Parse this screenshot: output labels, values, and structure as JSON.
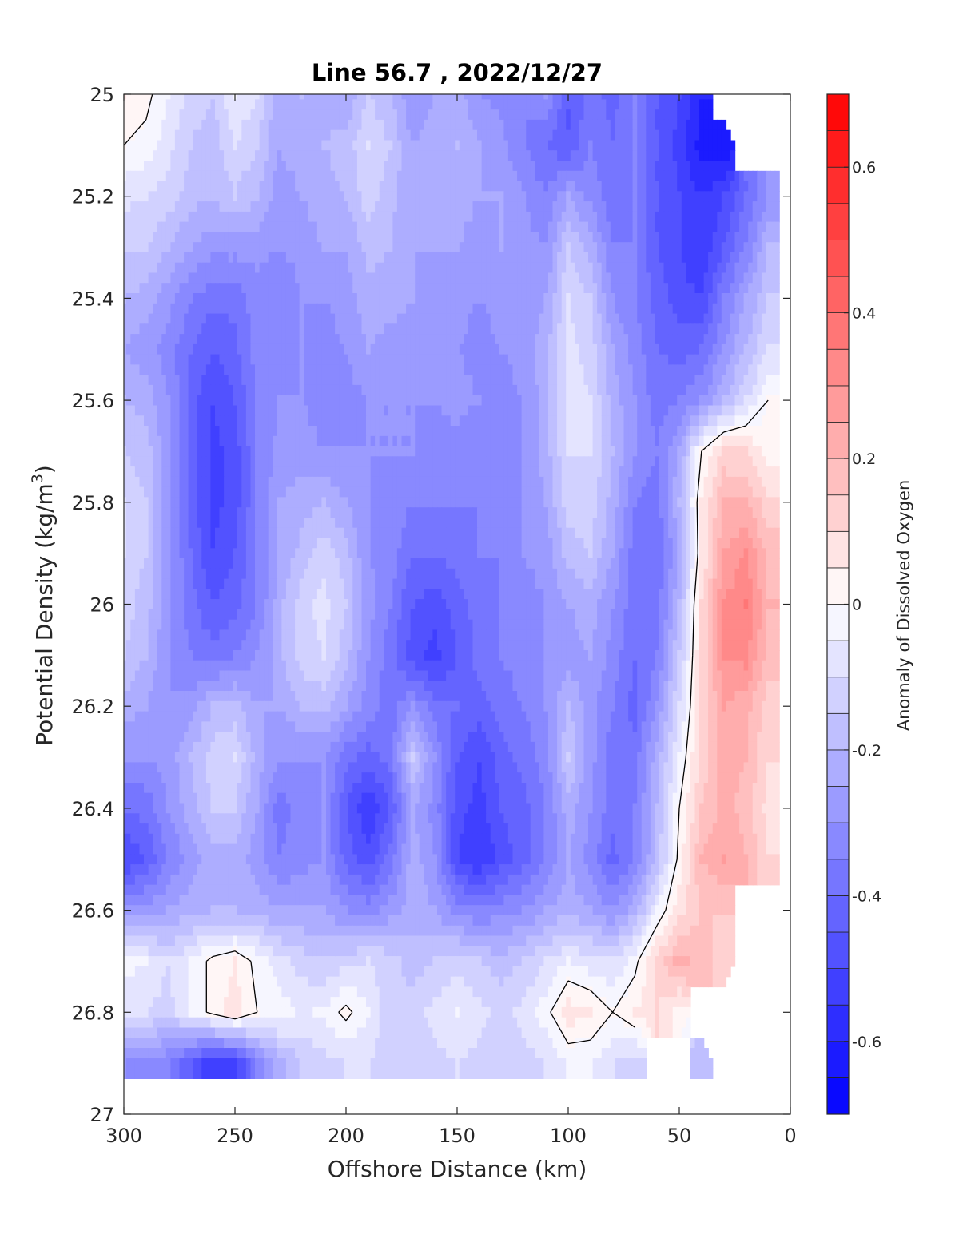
{
  "chart_data": {
    "type": "heatmap",
    "title": "Line 56.7 , 2022/12/27",
    "xlabel": "Offshore Distance (km)",
    "ylabel": "Potential Density (kg/m",
    "ylabel_superscript": "3",
    "ylabel_close": ")",
    "xlim": [
      300,
      0
    ],
    "ylim": [
      25,
      27
    ],
    "x_reversed": true,
    "y_reversed": true,
    "x_ticks": [
      300,
      250,
      200,
      150,
      100,
      50,
      0
    ],
    "x_tick_labels": [
      "300",
      "250",
      "200",
      "150",
      "100",
      "50",
      "0"
    ],
    "y_ticks": [
      25,
      25.2,
      25.4,
      25.6,
      25.8,
      26,
      26.2,
      26.4,
      26.6,
      26.8,
      27
    ],
    "y_tick_labels": [
      "25",
      "25.2",
      "25.4",
      "25.6",
      "25.8",
      "26",
      "26.2",
      "26.4",
      "26.6",
      "26.8",
      "27"
    ],
    "colorbar": {
      "label": "Anomaly of Dissolved Oxygen",
      "range": [
        -0.7,
        0.7
      ],
      "ticks": [
        0.6,
        0.4,
        0.2,
        0,
        -0.2,
        -0.4,
        -0.6
      ],
      "tick_labels": [
        "0.6",
        "0.4",
        "0.2",
        "0",
        "-0.2",
        "-0.4",
        "-0.6"
      ],
      "levels": [
        -0.7,
        -0.65,
        -0.6,
        -0.55,
        -0.5,
        -0.45,
        -0.4,
        -0.35,
        -0.3,
        -0.25,
        -0.2,
        -0.15,
        -0.1,
        -0.05,
        0,
        0.05,
        0.1,
        0.15,
        0.2,
        0.25,
        0.3,
        0.35,
        0.4,
        0.45,
        0.5,
        0.55,
        0.6,
        0.65,
        0.7
      ],
      "colormap": "blue-white-red",
      "color_negative": "#0000ff",
      "color_zero": "#ffffff",
      "color_positive": "#ff0000"
    },
    "zero_contour": true,
    "x": [
      300,
      290,
      280,
      270,
      260,
      250,
      240,
      230,
      220,
      210,
      200,
      190,
      180,
      170,
      160,
      150,
      140,
      130,
      120,
      110,
      100,
      90,
      80,
      70,
      60,
      50,
      40,
      30,
      20,
      10
    ],
    "y": [
      25.0,
      25.1,
      25.2,
      25.3,
      25.4,
      25.5,
      25.6,
      25.7,
      25.8,
      25.9,
      26.0,
      26.1,
      26.2,
      26.3,
      26.4,
      26.5,
      26.6,
      26.7,
      26.8,
      26.9
    ],
    "z": [
      [
        0.05,
        0.02,
        -0.05,
        -0.12,
        -0.15,
        -0.05,
        -0.1,
        -0.25,
        -0.2,
        -0.22,
        -0.25,
        -0.15,
        -0.2,
        -0.3,
        -0.25,
        -0.22,
        -0.3,
        -0.32,
        -0.35,
        -0.3,
        -0.45,
        -0.38,
        -0.42,
        -0.35,
        -0.45,
        -0.5,
        -0.6,
        null,
        null,
        null
      ],
      [
        0.0,
        -0.02,
        -0.08,
        -0.15,
        -0.18,
        -0.1,
        -0.15,
        -0.25,
        -0.22,
        -0.2,
        -0.18,
        -0.1,
        -0.15,
        -0.25,
        -0.22,
        -0.2,
        -0.25,
        -0.28,
        -0.35,
        -0.4,
        -0.45,
        -0.35,
        -0.4,
        -0.35,
        -0.45,
        -0.52,
        -0.62,
        -0.65,
        null,
        null
      ],
      [
        -0.08,
        -0.1,
        -0.12,
        -0.18,
        -0.2,
        -0.15,
        -0.2,
        -0.28,
        -0.25,
        -0.22,
        -0.2,
        -0.12,
        -0.18,
        -0.25,
        -0.22,
        -0.22,
        -0.25,
        -0.25,
        -0.3,
        -0.35,
        -0.25,
        -0.32,
        -0.38,
        -0.35,
        -0.45,
        -0.5,
        -0.55,
        -0.5,
        -0.4,
        -0.3
      ],
      [
        -0.15,
        -0.15,
        -0.2,
        -0.25,
        -0.28,
        -0.28,
        -0.28,
        -0.3,
        -0.28,
        -0.25,
        -0.25,
        -0.18,
        -0.2,
        -0.25,
        -0.25,
        -0.25,
        -0.28,
        -0.25,
        -0.28,
        -0.3,
        -0.15,
        -0.22,
        -0.35,
        -0.35,
        -0.45,
        -0.5,
        -0.55,
        -0.45,
        -0.35,
        -0.2
      ],
      [
        -0.2,
        -0.22,
        -0.28,
        -0.35,
        -0.38,
        -0.38,
        -0.32,
        -0.35,
        -0.3,
        -0.3,
        -0.28,
        -0.22,
        -0.22,
        -0.25,
        -0.28,
        -0.28,
        -0.3,
        -0.28,
        -0.28,
        -0.25,
        -0.1,
        -0.15,
        -0.3,
        -0.35,
        -0.42,
        -0.48,
        -0.5,
        -0.35,
        -0.25,
        -0.15
      ],
      [
        -0.25,
        -0.28,
        -0.32,
        -0.4,
        -0.45,
        -0.42,
        -0.32,
        -0.35,
        -0.3,
        -0.32,
        -0.3,
        -0.25,
        -0.28,
        -0.28,
        -0.3,
        -0.3,
        -0.32,
        -0.3,
        -0.28,
        -0.22,
        -0.08,
        -0.12,
        -0.25,
        -0.32,
        -0.4,
        -0.42,
        -0.4,
        -0.3,
        -0.2,
        -0.1
      ],
      [
        -0.2,
        -0.22,
        -0.3,
        -0.42,
        -0.5,
        -0.45,
        -0.35,
        -0.3,
        -0.3,
        -0.32,
        -0.32,
        -0.3,
        -0.3,
        -0.3,
        -0.3,
        -0.28,
        -0.3,
        -0.32,
        -0.3,
        -0.22,
        -0.08,
        -0.1,
        -0.22,
        -0.3,
        -0.38,
        -0.35,
        -0.3,
        -0.2,
        -0.1,
        0.0
      ],
      [
        -0.15,
        -0.18,
        -0.28,
        -0.42,
        -0.52,
        -0.48,
        -0.35,
        -0.28,
        -0.28,
        -0.3,
        -0.3,
        -0.3,
        -0.3,
        -0.3,
        -0.32,
        -0.32,
        -0.35,
        -0.35,
        -0.3,
        -0.22,
        -0.1,
        -0.1,
        -0.2,
        -0.3,
        -0.35,
        -0.25,
        0.0,
        0.12,
        0.1,
        0.02
      ],
      [
        -0.1,
        -0.15,
        -0.28,
        -0.42,
        -0.52,
        -0.48,
        -0.35,
        -0.25,
        -0.22,
        -0.2,
        -0.25,
        -0.3,
        -0.32,
        -0.35,
        -0.35,
        -0.35,
        -0.35,
        -0.35,
        -0.3,
        -0.25,
        -0.12,
        -0.12,
        -0.22,
        -0.35,
        -0.38,
        -0.2,
        0.05,
        0.2,
        0.2,
        0.12
      ],
      [
        -0.1,
        -0.15,
        -0.28,
        -0.4,
        -0.5,
        -0.45,
        -0.35,
        -0.25,
        -0.18,
        -0.12,
        -0.18,
        -0.3,
        -0.32,
        -0.4,
        -0.4,
        -0.38,
        -0.35,
        -0.35,
        -0.3,
        -0.28,
        -0.18,
        -0.15,
        -0.25,
        -0.38,
        -0.4,
        -0.25,
        0.05,
        0.25,
        0.3,
        0.18
      ],
      [
        -0.12,
        -0.18,
        -0.28,
        -0.38,
        -0.45,
        -0.42,
        -0.35,
        -0.22,
        -0.12,
        -0.08,
        -0.15,
        -0.28,
        -0.35,
        -0.45,
        -0.48,
        -0.42,
        -0.38,
        -0.35,
        -0.32,
        -0.3,
        -0.25,
        -0.22,
        -0.3,
        -0.38,
        -0.38,
        -0.2,
        0.1,
        0.3,
        0.35,
        0.2
      ],
      [
        -0.15,
        -0.2,
        -0.3,
        -0.35,
        -0.38,
        -0.35,
        -0.3,
        -0.22,
        -0.12,
        -0.1,
        -0.18,
        -0.3,
        -0.38,
        -0.48,
        -0.52,
        -0.45,
        -0.38,
        -0.35,
        -0.32,
        -0.3,
        -0.28,
        -0.25,
        -0.32,
        -0.4,
        -0.35,
        -0.15,
        0.1,
        0.3,
        0.32,
        0.18
      ],
      [
        -0.22,
        -0.25,
        -0.3,
        -0.28,
        -0.2,
        -0.18,
        -0.25,
        -0.25,
        -0.2,
        -0.18,
        -0.25,
        -0.32,
        -0.38,
        -0.3,
        -0.38,
        -0.4,
        -0.42,
        -0.38,
        -0.35,
        -0.3,
        -0.2,
        -0.28,
        -0.35,
        -0.42,
        -0.3,
        -0.1,
        0.1,
        0.25,
        0.22,
        0.12
      ],
      [
        -0.3,
        -0.3,
        -0.28,
        -0.2,
        -0.12,
        -0.1,
        -0.22,
        -0.3,
        -0.3,
        -0.3,
        -0.38,
        -0.42,
        -0.38,
        -0.15,
        -0.3,
        -0.45,
        -0.5,
        -0.42,
        -0.38,
        -0.32,
        -0.15,
        -0.28,
        -0.38,
        -0.38,
        -0.22,
        -0.05,
        0.12,
        0.22,
        0.2,
        0.1
      ],
      [
        -0.4,
        -0.38,
        -0.3,
        -0.22,
        -0.15,
        -0.15,
        -0.25,
        -0.38,
        -0.32,
        -0.3,
        -0.45,
        -0.55,
        -0.45,
        -0.25,
        -0.32,
        -0.48,
        -0.52,
        -0.45,
        -0.42,
        -0.35,
        -0.22,
        -0.3,
        -0.38,
        -0.35,
        -0.2,
        0.0,
        0.15,
        0.22,
        0.18,
        0.08
      ],
      [
        -0.5,
        -0.45,
        -0.35,
        -0.28,
        -0.22,
        -0.22,
        -0.28,
        -0.35,
        -0.32,
        -0.3,
        -0.42,
        -0.48,
        -0.38,
        -0.22,
        -0.3,
        -0.5,
        -0.55,
        -0.48,
        -0.42,
        -0.35,
        -0.25,
        -0.32,
        -0.42,
        -0.35,
        -0.18,
        0.02,
        0.2,
        0.25,
        0.2,
        0.1
      ],
      [
        -0.3,
        -0.28,
        -0.25,
        -0.22,
        -0.2,
        -0.2,
        -0.22,
        -0.25,
        -0.25,
        -0.25,
        -0.3,
        -0.32,
        -0.28,
        -0.22,
        -0.25,
        -0.32,
        -0.35,
        -0.32,
        -0.3,
        -0.25,
        -0.22,
        -0.25,
        -0.3,
        -0.22,
        -0.05,
        0.08,
        0.15,
        0.15,
        null,
        null
      ],
      [
        -0.02,
        -0.05,
        -0.1,
        -0.05,
        0.02,
        0.05,
        -0.02,
        -0.08,
        -0.12,
        -0.15,
        -0.12,
        -0.1,
        -0.12,
        -0.18,
        -0.15,
        -0.12,
        -0.15,
        -0.18,
        -0.15,
        -0.1,
        -0.05,
        -0.08,
        -0.1,
        -0.02,
        0.12,
        0.22,
        0.18,
        0.12,
        null,
        null
      ],
      [
        -0.1,
        -0.1,
        -0.12,
        -0.05,
        0.02,
        0.08,
        0.0,
        -0.02,
        -0.06,
        -0.04,
        0.02,
        -0.05,
        -0.15,
        -0.12,
        -0.08,
        -0.05,
        -0.08,
        -0.12,
        -0.08,
        -0.02,
        0.08,
        0.06,
        0.0,
        0.05,
        0.1,
        0.02,
        null,
        null,
        null,
        null
      ],
      [
        -0.3,
        -0.32,
        -0.35,
        -0.45,
        -0.55,
        -0.52,
        -0.35,
        -0.22,
        -0.15,
        -0.12,
        -0.1,
        -0.1,
        -0.12,
        -0.15,
        -0.12,
        -0.1,
        -0.12,
        -0.15,
        -0.12,
        -0.1,
        -0.05,
        -0.05,
        -0.1,
        -0.12,
        null,
        null,
        -0.2,
        null,
        null,
        null
      ]
    ]
  }
}
